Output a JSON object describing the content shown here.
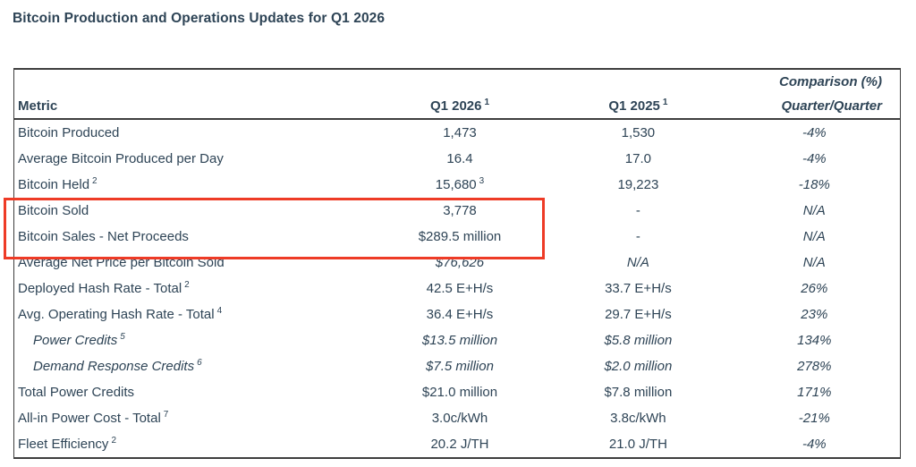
{
  "title": "Bitcoin Production and Operations Updates for Q1 2026",
  "colors": {
    "text": "#2e4456",
    "table_border": "#3e3e3e",
    "highlight_red": "#ee3b26",
    "background": "#ffffff"
  },
  "table": {
    "header": {
      "metric": "Metric",
      "q1_2026": "Q1 2026",
      "q1_2026_sup": "1",
      "q1_2025": "Q1 2025",
      "q1_2025_sup": "1",
      "comparison_line1": "Comparison (%)",
      "comparison_line2": "Quarter/Quarter"
    },
    "rows": [
      {
        "metric": "Bitcoin Produced",
        "q1_2026": "1,473",
        "q1_2025": "1,530",
        "comparison": "-4%"
      },
      {
        "metric": "Average Bitcoin Produced per Day",
        "q1_2026": "16.4",
        "q1_2025": "17.0",
        "comparison": "-4%"
      },
      {
        "metric": "Bitcoin Held",
        "metric_sup": "2",
        "q1_2026": "15,680",
        "q1_2026_sup": "3",
        "q1_2025": "19,223",
        "comparison": "-18%"
      },
      {
        "metric": "Bitcoin Sold",
        "q1_2026": "3,778",
        "q1_2025": "-",
        "comparison": "N/A"
      },
      {
        "metric": "Bitcoin Sales - Net Proceeds",
        "q1_2026": "$289.5 million",
        "q1_2025": "-",
        "comparison": "N/A"
      },
      {
        "metric": "Average Net Price per Bitcoin Sold",
        "q1_2026": "$76,626",
        "q1_2025": "N/A",
        "comparison": "N/A"
      },
      {
        "metric": "Deployed Hash Rate - Total",
        "metric_sup": "2",
        "q1_2026": "42.5 E+H/s",
        "q1_2025": "33.7 E+H/s",
        "comparison": "26%"
      },
      {
        "metric": "Avg. Operating Hash Rate - Total",
        "metric_sup": "4",
        "q1_2026": "36.4 E+H/s",
        "q1_2025": "29.7 E+H/s",
        "comparison": "23%"
      },
      {
        "metric": "Power Credits",
        "metric_sup": "5",
        "q1_2026": "$13.5 million",
        "q1_2025": "$5.8 million",
        "comparison": "134%"
      },
      {
        "metric": "Demand Response Credits",
        "metric_sup": "6",
        "q1_2026": "$7.5 million",
        "q1_2025": "$2.0 million",
        "comparison": "278%"
      },
      {
        "metric": "Total Power Credits",
        "q1_2026": "$21.0 million",
        "q1_2025": "$7.8 million",
        "comparison": "171%"
      },
      {
        "metric": "All-in Power Cost - Total",
        "metric_sup": "7",
        "q1_2026": "3.0c/kWh",
        "q1_2025": "3.8c/kWh",
        "comparison": "-21%"
      },
      {
        "metric": "Fleet Efficiency",
        "metric_sup": "2",
        "q1_2026": "20.2 J/TH",
        "q1_2025": "21.0 J/TH",
        "comparison": "-4%"
      }
    ]
  }
}
